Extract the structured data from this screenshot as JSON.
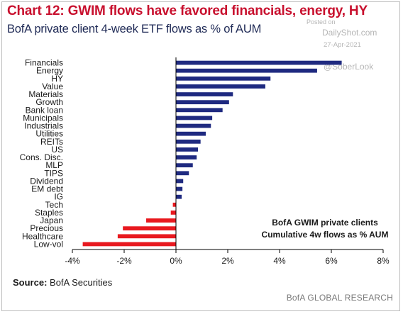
{
  "header": {
    "title": "Chart 12: GWIM flows have favored financials, energy, HY",
    "subtitle": "BofA private client 4-week ETF flows as % of AUM"
  },
  "watermark": {
    "posted": "Posted on",
    "site": "DailyShot.com",
    "date": "27-Apr-2021",
    "handle": "@SoberLook"
  },
  "annotation": {
    "line1": "BofA GWIM private clients",
    "line2": "Cumulative 4w flows as % AUM"
  },
  "footer": {
    "source_label": "Source:",
    "source_text": "BofA Securities",
    "brand": "BofA GLOBAL RESEARCH"
  },
  "colors": {
    "positive": "#1f2a80",
    "negative": "#e8191f",
    "title": "#c8102e",
    "subtitle": "#1f2a56"
  },
  "chart_data": {
    "type": "bar",
    "orientation": "horizontal",
    "categories": [
      "Financials",
      "Energy",
      "HY",
      "Value",
      "Materials",
      "Growth",
      "Bank loan",
      "Municipals",
      "Industrials",
      "Utilities",
      "REITs",
      "US",
      "Cons. Disc.",
      "MLP",
      "TIPS",
      "Dividend",
      "EM debt",
      "IG",
      "Tech",
      "Staples",
      "Japan",
      "Precious",
      "Healthcare",
      "Low-vol"
    ],
    "values": [
      6.4,
      5.45,
      3.65,
      3.45,
      2.2,
      2.05,
      1.8,
      1.4,
      1.35,
      1.15,
      0.95,
      0.85,
      0.8,
      0.65,
      0.5,
      0.28,
      0.25,
      0.22,
      -0.12,
      -0.2,
      -1.15,
      -2.05,
      -2.25,
      -3.6
    ],
    "xlim": [
      -4,
      8
    ],
    "xticks": [
      "-4%",
      "-2%",
      "0%",
      "2%",
      "4%",
      "6%",
      "8%"
    ],
    "grid": false,
    "xlabel": "",
    "ylabel": ""
  }
}
